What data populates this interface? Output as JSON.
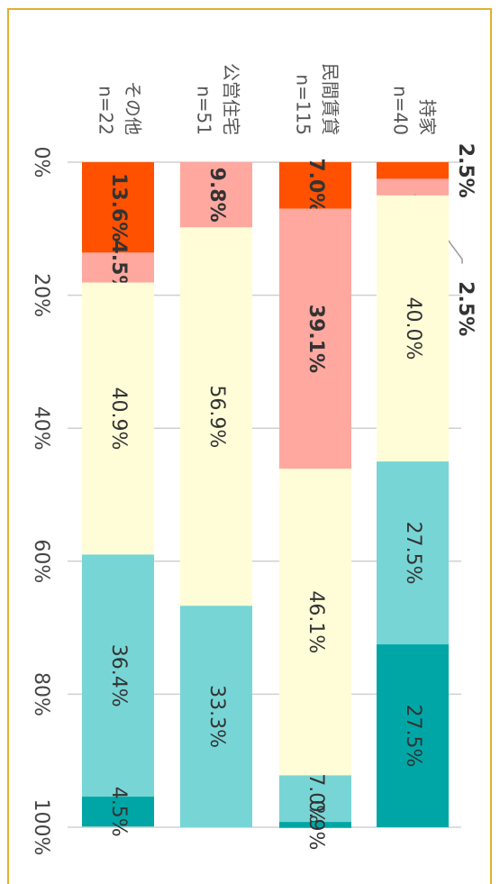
{
  "chart_data": {
    "type": "stacked_bar",
    "categories": [
      "持家",
      "民間賃貸",
      "公営住宅",
      "その他"
    ],
    "category_notes": [
      "n=40",
      "n=115",
      "n=51",
      "n=22"
    ],
    "series": [
      {
        "color": "#ff5100",
        "values": [
          2.5,
          7.0,
          0,
          13.6
        ],
        "value_labels": [
          "2.5%",
          "7.0%",
          null,
          "13.6%"
        ]
      },
      {
        "color": "#ffa8a0",
        "values": [
          2.5,
          39.1,
          9.8,
          4.5
        ],
        "value_labels": [
          "2.5%",
          "39.1%",
          "9.8%",
          "4.5%"
        ]
      },
      {
        "color": "#fffdd8",
        "values": [
          40.0,
          46.1,
          56.9,
          40.9
        ],
        "value_labels": [
          "40.0%",
          "46.1%",
          "56.9%",
          "40.9%"
        ]
      },
      {
        "color": "#78d5d5",
        "values": [
          27.5,
          7.0,
          33.3,
          36.4
        ],
        "value_labels": [
          "27.5%",
          "7.0%",
          "33.3%",
          "36.4%"
        ]
      },
      {
        "color": "#00a6a6",
        "values": [
          27.5,
          0.9,
          0,
          4.5
        ],
        "value_labels": [
          "27.5%",
          "0.9%",
          null,
          "4.5%"
        ]
      }
    ],
    "xlim": [
      0,
      100
    ],
    "xticks": [
      {
        "value": 0,
        "label": "0%"
      },
      {
        "value": 20,
        "label": "20%"
      },
      {
        "value": 40,
        "label": "40%"
      },
      {
        "value": 60,
        "label": "60%"
      },
      {
        "value": 80,
        "label": "80%"
      },
      {
        "value": 100,
        "label": "100%"
      }
    ],
    "grid": true
  }
}
